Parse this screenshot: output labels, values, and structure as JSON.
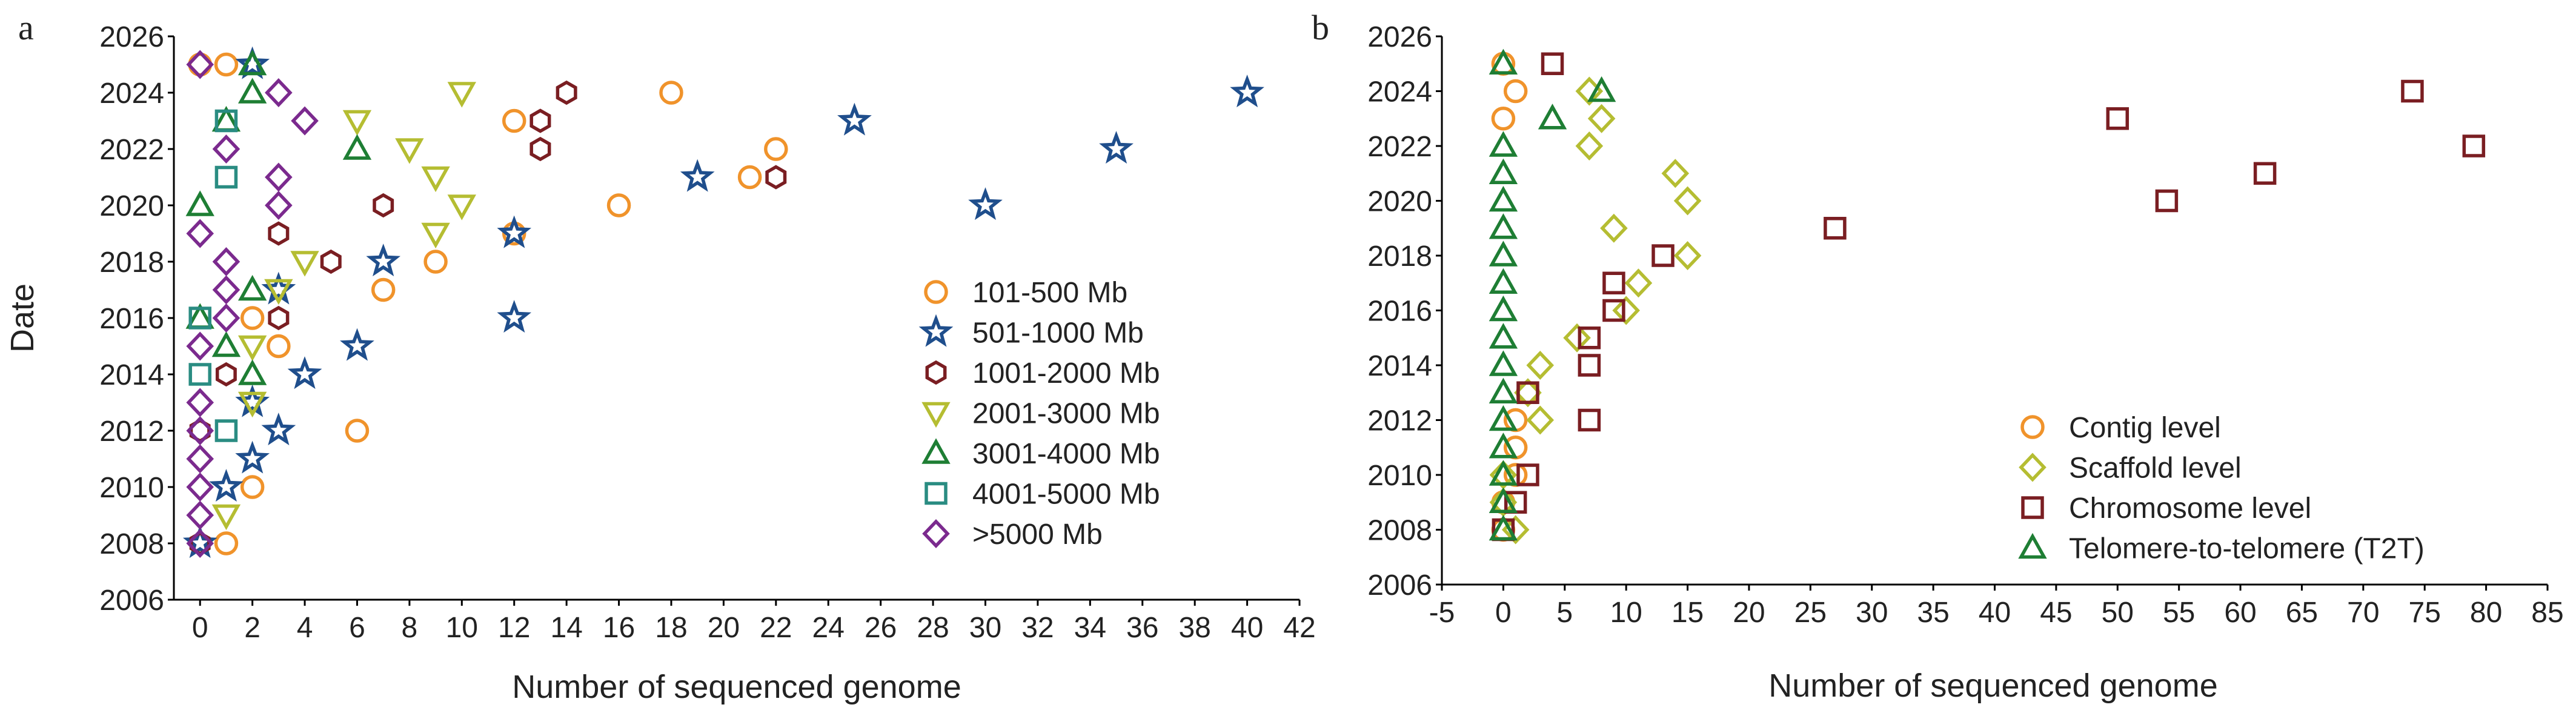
{
  "figure": {
    "panels": [
      {
        "label": "a",
        "chart_data": {
          "type": "scatter",
          "xlabel": "Number of sequenced genome",
          "ylabel": "Date",
          "xlim": [
            -1,
            42
          ],
          "ylim": [
            2006,
            2026
          ],
          "xticks": [
            0,
            2,
            4,
            6,
            8,
            10,
            12,
            14,
            16,
            18,
            20,
            22,
            24,
            26,
            28,
            30,
            32,
            34,
            36,
            38,
            40,
            42
          ],
          "yticks": [
            2006,
            2008,
            2010,
            2012,
            2014,
            2016,
            2018,
            2020,
            2022,
            2024,
            2026
          ],
          "grid": false,
          "legend_position": "right",
          "series": [
            {
              "name": "101-500 Mb",
              "marker": "circle",
              "color": "#F0932B",
              "points": [
                [
                  1,
                  2008
                ],
                [
                  2,
                  2010
                ],
                [
                  6,
                  2012
                ],
                [
                  2,
                  2016
                ],
                [
                  3,
                  2015
                ],
                [
                  7,
                  2017
                ],
                [
                  9,
                  2018
                ],
                [
                  12,
                  2019
                ],
                [
                  16,
                  2020
                ],
                [
                  21,
                  2021
                ],
                [
                  22,
                  2022
                ],
                [
                  12,
                  2023
                ],
                [
                  18,
                  2024
                ],
                [
                  1,
                  2025
                ],
                [
                  0,
                  2025
                ]
              ]
            },
            {
              "name": "501-1000 Mb",
              "marker": "star",
              "color": "#1F4E8C",
              "points": [
                [
                  0,
                  2008
                ],
                [
                  1,
                  2010
                ],
                [
                  2,
                  2011
                ],
                [
                  3,
                  2012
                ],
                [
                  2,
                  2013
                ],
                [
                  4,
                  2014
                ],
                [
                  6,
                  2015
                ],
                [
                  12,
                  2016
                ],
                [
                  3,
                  2017
                ],
                [
                  7,
                  2018
                ],
                [
                  12,
                  2019
                ],
                [
                  30,
                  2020
                ],
                [
                  19,
                  2021
                ],
                [
                  35,
                  2022
                ],
                [
                  25,
                  2023
                ],
                [
                  40,
                  2024
                ],
                [
                  2,
                  2025
                ]
              ]
            },
            {
              "name": "1001-2000 Mb",
              "marker": "hexagon",
              "color": "#7A1E22",
              "points": [
                [
                  0,
                  2008
                ],
                [
                  0,
                  2012
                ],
                [
                  3,
                  2016
                ],
                [
                  7,
                  2020
                ],
                [
                  5,
                  2018
                ],
                [
                  3,
                  2019
                ],
                [
                  22,
                  2021
                ],
                [
                  13,
                  2022
                ],
                [
                  13,
                  2023
                ],
                [
                  14,
                  2024
                ],
                [
                  1,
                  2014
                ]
              ]
            },
            {
              "name": "2001-3000 Mb",
              "marker": "triangle-down",
              "color": "#B5BD32",
              "points": [
                [
                  1,
                  2009
                ],
                [
                  2,
                  2015
                ],
                [
                  2,
                  2013
                ],
                [
                  4,
                  2018
                ],
                [
                  3,
                  2017
                ],
                [
                  9,
                  2019
                ],
                [
                  10,
                  2020
                ],
                [
                  9,
                  2021
                ],
                [
                  8,
                  2022
                ],
                [
                  6,
                  2023
                ],
                [
                  10,
                  2024
                ]
              ]
            },
            {
              "name": "3001-4000 Mb",
              "marker": "triangle-up",
              "color": "#1E7E34",
              "points": [
                [
                  0,
                  2020
                ],
                [
                  0,
                  2016
                ],
                [
                  1,
                  2015
                ],
                [
                  2,
                  2014
                ],
                [
                  2,
                  2017
                ],
                [
                  6,
                  2022
                ],
                [
                  1,
                  2023
                ],
                [
                  2,
                  2024
                ],
                [
                  2,
                  2025
                ]
              ]
            },
            {
              "name": "4001-5000 Mb",
              "marker": "square",
              "color": "#2A8C82",
              "points": [
                [
                  0,
                  2014
                ],
                [
                  1,
                  2012
                ],
                [
                  0,
                  2016
                ],
                [
                  1,
                  2021
                ],
                [
                  1,
                  2023
                ]
              ]
            },
            {
              "name": ">5000 Mb",
              "marker": "diamond",
              "color": "#7B2A8E",
              "points": [
                [
                  0,
                  2008
                ],
                [
                  0,
                  2009
                ],
                [
                  0,
                  2010
                ],
                [
                  0,
                  2011
                ],
                [
                  0,
                  2012
                ],
                [
                  0,
                  2013
                ],
                [
                  0,
                  2015
                ],
                [
                  0,
                  2019
                ],
                [
                  0,
                  2025
                ],
                [
                  1,
                  2016
                ],
                [
                  1,
                  2017
                ],
                [
                  1,
                  2018
                ],
                [
                  1,
                  2022
                ],
                [
                  3,
                  2020
                ],
                [
                  3,
                  2021
                ],
                [
                  3,
                  2024
                ],
                [
                  4,
                  2023
                ]
              ]
            }
          ]
        }
      },
      {
        "label": "b",
        "chart_data": {
          "type": "scatter",
          "xlabel": "Number of sequenced genome",
          "ylabel": "",
          "xlim": [
            -5,
            85
          ],
          "ylim": [
            2006,
            2026
          ],
          "xticks": [
            -5,
            0,
            5,
            10,
            15,
            20,
            25,
            30,
            35,
            40,
            45,
            50,
            55,
            60,
            65,
            70,
            75,
            80,
            85
          ],
          "yticks": [
            2006,
            2008,
            2010,
            2012,
            2014,
            2016,
            2018,
            2020,
            2022,
            2024,
            2026
          ],
          "grid": false,
          "legend_position": "bottom-right",
          "series": [
            {
              "name": "Contig level",
              "marker": "circle",
              "color": "#F0932B",
              "points": [
                [
                  0,
                  2008
                ],
                [
                  0,
                  2009
                ],
                [
                  1,
                  2010
                ],
                [
                  1,
                  2011
                ],
                [
                  1,
                  2012
                ],
                [
                  2,
                  2013
                ],
                [
                  0,
                  2023
                ],
                [
                  1,
                  2024
                ],
                [
                  0,
                  2025
                ]
              ]
            },
            {
              "name": "Scaffold level",
              "marker": "diamond",
              "color": "#B5BD32",
              "points": [
                [
                  1,
                  2008
                ],
                [
                  0,
                  2009
                ],
                [
                  0,
                  2010
                ],
                [
                  3,
                  2012
                ],
                [
                  2,
                  2013
                ],
                [
                  3,
                  2014
                ],
                [
                  6,
                  2015
                ],
                [
                  10,
                  2016
                ],
                [
                  11,
                  2017
                ],
                [
                  15,
                  2018
                ],
                [
                  9,
                  2019
                ],
                [
                  15,
                  2020
                ],
                [
                  14,
                  2021
                ],
                [
                  7,
                  2022
                ],
                [
                  8,
                  2023
                ],
                [
                  7,
                  2024
                ]
              ]
            },
            {
              "name": "Chromosome level",
              "marker": "square",
              "color": "#7A1E22",
              "points": [
                [
                  0,
                  2008
                ],
                [
                  1,
                  2009
                ],
                [
                  2,
                  2010
                ],
                [
                  7,
                  2012
                ],
                [
                  2,
                  2013
                ],
                [
                  7,
                  2014
                ],
                [
                  7,
                  2015
                ],
                [
                  9,
                  2016
                ],
                [
                  9,
                  2017
                ],
                [
                  13,
                  2018
                ],
                [
                  27,
                  2019
                ],
                [
                  54,
                  2020
                ],
                [
                  62,
                  2021
                ],
                [
                  79,
                  2022
                ],
                [
                  50,
                  2023
                ],
                [
                  74,
                  2024
                ],
                [
                  4,
                  2025
                ]
              ]
            },
            {
              "name": "Telomere-to-telomere (T2T)",
              "marker": "triangle-up",
              "color": "#1E7E34",
              "points": [
                [
                  0,
                  2008
                ],
                [
                  0,
                  2009
                ],
                [
                  0,
                  2010
                ],
                [
                  0,
                  2011
                ],
                [
                  0,
                  2012
                ],
                [
                  0,
                  2013
                ],
                [
                  0,
                  2014
                ],
                [
                  0,
                  2015
                ],
                [
                  0,
                  2016
                ],
                [
                  0,
                  2017
                ],
                [
                  0,
                  2018
                ],
                [
                  0,
                  2019
                ],
                [
                  0,
                  2020
                ],
                [
                  0,
                  2021
                ],
                [
                  0,
                  2022
                ],
                [
                  4,
                  2023
                ],
                [
                  8,
                  2024
                ],
                [
                  0,
                  2025
                ]
              ]
            }
          ]
        }
      }
    ]
  }
}
